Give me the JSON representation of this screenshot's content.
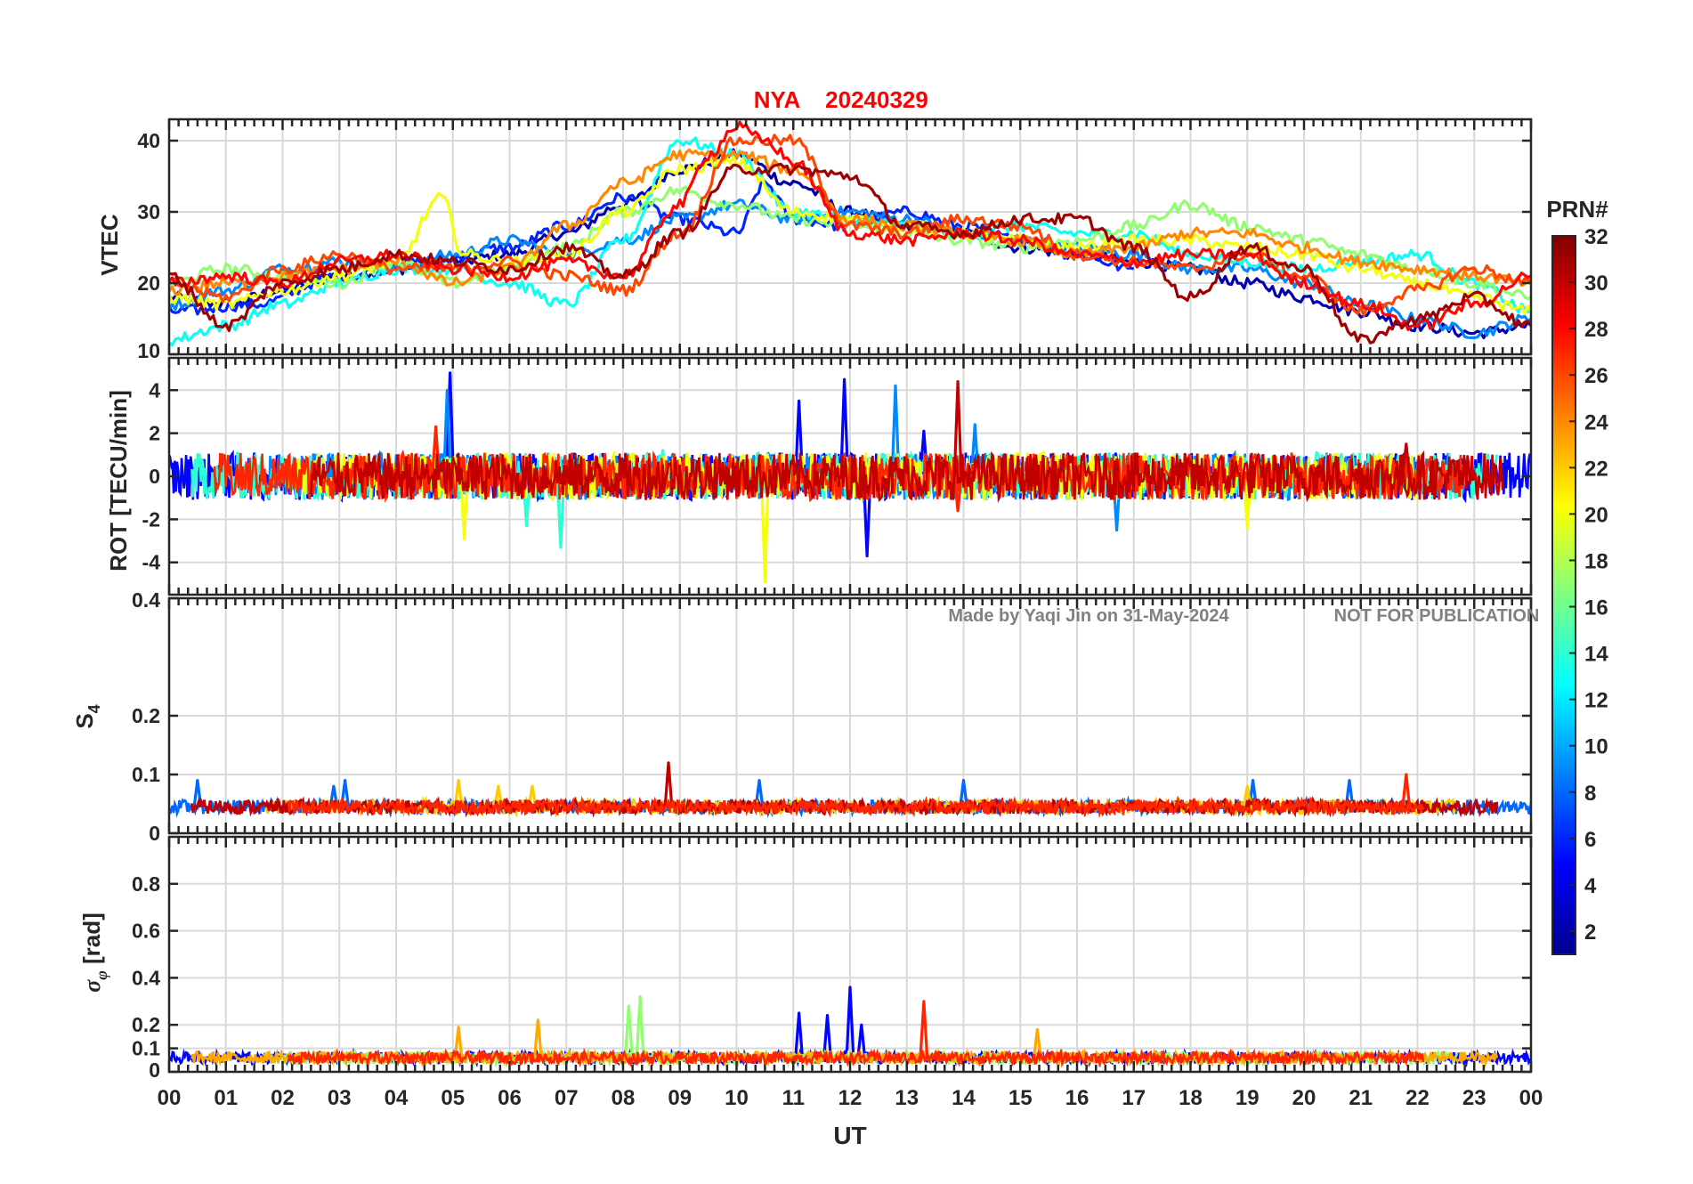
{
  "chart_data": {
    "type": "line",
    "title": {
      "station": "NYA",
      "date": "20240329",
      "color": "#ff0000"
    },
    "watermark": {
      "author": "Made by Yaqi Jin on 31-May-2024",
      "notice": "NOT FOR PUBLICATION",
      "color": "#808080"
    },
    "xlabel": "UT",
    "xlim": [
      0,
      24
    ],
    "x_tick_labels": [
      "00",
      "01",
      "02",
      "03",
      "04",
      "05",
      "06",
      "07",
      "08",
      "09",
      "10",
      "11",
      "12",
      "13",
      "14",
      "15",
      "16",
      "17",
      "18",
      "19",
      "20",
      "21",
      "22",
      "23",
      "00"
    ],
    "colorbar": {
      "title": "PRN#",
      "range": [
        1,
        32
      ],
      "tick_values": [
        2,
        4,
        6,
        8,
        10,
        12,
        14,
        16,
        18,
        20,
        22,
        24,
        26,
        28,
        30,
        32
      ],
      "tick_labels": [
        "2",
        "4",
        "6",
        "8",
        "10",
        "12",
        "14",
        "16",
        "18",
        "20",
        "22",
        "24",
        "26",
        "28",
        "30",
        "32"
      ],
      "colormap": "jet",
      "stops": [
        "#00008f",
        "#0000ff",
        "#0080ff",
        "#00ffff",
        "#80ff80",
        "#ffff00",
        "#ff8000",
        "#ff0000",
        "#800000"
      ]
    },
    "panels": [
      {
        "id": "vtec",
        "ylabel": "VTEC",
        "ylim": [
          10,
          43
        ],
        "y_ticks": [
          10,
          20,
          30,
          40
        ],
        "y_tick_labels": [
          "10",
          "20",
          "30",
          "40"
        ],
        "series": [
          {
            "prn": 2,
            "x": [
              0,
              1,
              2,
              3,
              4,
              5,
              6,
              7,
              8,
              9,
              10,
              11,
              12,
              13,
              14,
              15,
              16,
              17,
              18,
              19,
              20,
              21,
              22,
              23,
              24
            ],
            "y": [
              18,
              17,
              19,
              21,
              22,
              23,
              24,
              27,
              31,
              36,
              38,
              34,
              30,
              28,
              27,
              25,
              24,
              23,
              22,
              20,
              18,
              16,
              14,
              13,
              14
            ]
          },
          {
            "prn": 6,
            "x": [
              0,
              1.5,
              3,
              4.5,
              6,
              7,
              8,
              9,
              10,
              10.5,
              11,
              12,
              13,
              14,
              15,
              16,
              17
            ],
            "y": [
              16,
              17,
              21,
              23,
              25,
              28,
              32,
              29,
              27,
              34,
              29,
              28,
              30,
              28,
              26,
              24,
              22
            ]
          },
          {
            "prn": 9,
            "x": [
              0,
              1,
              2,
              3,
              4,
              5,
              6,
              7,
              8,
              9,
              10,
              11,
              12,
              13,
              14,
              15,
              16,
              17,
              18,
              19,
              20,
              21,
              22,
              23,
              24
            ],
            "y": [
              17,
              19,
              22,
              23,
              22,
              24,
              26,
              24,
              26,
              29,
              31,
              29,
              30,
              29,
              27,
              26,
              25,
              24,
              22,
              22,
              20,
              17,
              15,
              13,
              15
            ]
          },
          {
            "prn": 13,
            "x": [
              0,
              1,
              2,
              3,
              4,
              5,
              6,
              7,
              8,
              9,
              10,
              11,
              12,
              13,
              14,
              15,
              16,
              17,
              18,
              19,
              20,
              21,
              22,
              23,
              24
            ],
            "y": [
              12,
              14,
              17,
              20,
              22,
              22,
              20,
              17,
              26,
              40,
              38,
              30,
              29,
              28,
              27,
              28,
              27,
              27,
              24,
              23,
              22,
              23,
              24,
              20,
              16
            ]
          },
          {
            "prn": 17,
            "x": [
              0,
              1,
              2,
              3,
              4,
              5,
              6,
              7,
              8,
              9,
              10,
              11,
              12,
              13,
              14,
              15,
              16,
              17,
              18,
              19,
              20,
              21,
              22,
              23,
              24
            ],
            "y": [
              20,
              22,
              21,
              20,
              23,
              20,
              22,
              25,
              30,
              33,
              31,
              29,
              28,
              27,
              26,
              25,
              26,
              28,
              31,
              28,
              26,
              24,
              22,
              20,
              18
            ]
          },
          {
            "prn": 20,
            "x": [
              0,
              1,
              2,
              3,
              4,
              4.8,
              5.2,
              6,
              7,
              8,
              9,
              10,
              11,
              12,
              13,
              14,
              15,
              16,
              17,
              18,
              19,
              20,
              21,
              22,
              23,
              24
            ],
            "y": [
              18,
              17,
              19,
              21,
              23,
              32,
              24,
              23,
              24,
              30,
              36,
              37,
              30,
              29,
              28,
              27,
              26,
              25,
              26,
              26,
              25,
              24,
              22,
              20,
              18,
              16
            ]
          },
          {
            "prn": 24,
            "x": [
              0,
              1,
              2,
              3,
              4,
              5,
              6,
              7,
              8,
              9,
              10,
              11,
              12,
              13,
              14,
              15,
              16,
              17,
              18,
              19,
              20,
              21,
              22,
              23,
              24
            ],
            "y": [
              19,
              20,
              21,
              22,
              23,
              20,
              22,
              28,
              34,
              38,
              38,
              36,
              29,
              28,
              27,
              26,
              24,
              25,
              27,
              27,
              25,
              23,
              22,
              21,
              20
            ]
          },
          {
            "prn": 26,
            "x": [
              0,
              1,
              2,
              3,
              4,
              5,
              6,
              7,
              8,
              9,
              10,
              11,
              12,
              13,
              14,
              15,
              16,
              17,
              18,
              19,
              20,
              21,
              22,
              23,
              24
            ],
            "y": [
              20,
              18,
              22,
              24,
              22,
              22,
              23,
              21,
              19,
              27,
              40,
              40,
              28,
              27,
              29,
              28,
              24,
              23,
              22,
              24,
              21,
              16,
              19,
              22,
              20
            ]
          },
          {
            "prn": 28,
            "x": [
              0,
              1,
              2,
              3,
              4,
              5,
              6,
              7,
              8,
              9,
              9.5,
              10,
              10.5,
              11,
              12,
              13,
              14,
              15,
              16,
              17,
              18,
              19,
              20,
              21,
              22,
              23,
              24
            ],
            "y": [
              20,
              21,
              20,
              23,
              24,
              22,
              21,
              23,
              21,
              31,
              38,
              42,
              40,
              37,
              27,
              26,
              27,
              26,
              24,
              23,
              24,
              24,
              20,
              17,
              14,
              17,
              21
            ]
          },
          {
            "prn": 31,
            "x": [
              0,
              1,
              2,
              3,
              4,
              5,
              6,
              7,
              8,
              9,
              10,
              11,
              12,
              13,
              14,
              15,
              16,
              17,
              18,
              19,
              20,
              21,
              22,
              23,
              24
            ],
            "y": [
              21,
              14,
              20,
              22,
              24,
              23,
              22,
              25,
              21,
              27,
              36,
              36,
              35,
              28,
              27,
              29,
              29,
              25,
              18,
              25,
              22,
              12,
              15,
              18,
              14
            ]
          }
        ]
      },
      {
        "id": "rot",
        "ylabel": "ROT [TECU/min]",
        "ylim": [
          -5.5,
          5.5
        ],
        "y_ticks": [
          -4,
          -2,
          0,
          2,
          4
        ],
        "y_tick_labels": [
          "-4",
          "-2",
          "0",
          "2",
          "4"
        ],
        "series": [
          {
            "prn": 5,
            "x": [
              4.95,
              11.1,
              11.9,
              12.3,
              13.3
            ],
            "y": [
              4.8,
              3.5,
              4.5,
              -3.7,
              2.1
            ]
          },
          {
            "prn": 9,
            "x": [
              4.9,
              12.8,
              14.2,
              16.7
            ],
            "y": [
              4.0,
              4.2,
              2.4,
              -2.5
            ]
          },
          {
            "prn": 14,
            "x": [
              6.3,
              6.9,
              8.7
            ],
            "y": [
              -2.3,
              -3.3,
              1.2
            ]
          },
          {
            "prn": 20,
            "x": [
              5.2,
              10.5,
              19.0
            ],
            "y": [
              -2.9,
              -4.9,
              -2.4
            ]
          },
          {
            "prn": 27,
            "x": [
              4.7,
              13.9
            ],
            "y": [
              2.3,
              -1.6
            ]
          },
          {
            "prn": 30,
            "x": [
              13.9,
              21.8
            ],
            "y": [
              4.4,
              1.5
            ]
          }
        ]
      },
      {
        "id": "s4",
        "ylabel": "S4",
        "ylim": [
          0,
          0.4
        ],
        "y_ticks": [
          0,
          0.1,
          0.2,
          0.4
        ],
        "y_tick_labels": [
          "0",
          "0.1",
          "0.2",
          "0.4"
        ],
        "series": [
          {
            "prn": 8,
            "x": [
              0.5,
              2.9,
              3.1,
              10.4,
              14.0,
              19.1,
              20.8
            ],
            "y": [
              0.09,
              0.08,
              0.09,
              0.09,
              0.09,
              0.09,
              0.09
            ]
          },
          {
            "prn": 22,
            "x": [
              5.1,
              5.8,
              6.4,
              19.0
            ],
            "y": [
              0.09,
              0.08,
              0.08,
              0.08
            ]
          },
          {
            "prn": 30,
            "x": [
              8.8
            ],
            "y": [
              0.12
            ]
          },
          {
            "prn": 27,
            "x": [
              21.8
            ],
            "y": [
              0.1
            ]
          }
        ]
      },
      {
        "id": "sigma_phi",
        "ylabel": "σφ [rad]",
        "ylim": [
          0,
          1.0
        ],
        "y_ticks": [
          0,
          0.1,
          0.2,
          0.4,
          0.6,
          0.8
        ],
        "y_tick_labels": [
          "0",
          "0.1",
          "0.2",
          "0.4",
          "0.6",
          "0.8"
        ],
        "series": [
          {
            "prn": 5,
            "x": [
              11.1,
              11.6,
              12.0,
              12.2
            ],
            "y": [
              0.25,
              0.24,
              0.36,
              0.2
            ]
          },
          {
            "prn": 17,
            "x": [
              8.1,
              8.3
            ],
            "y": [
              0.28,
              0.32
            ]
          },
          {
            "prn": 23,
            "x": [
              5.1,
              6.5,
              15.3
            ],
            "y": [
              0.19,
              0.22,
              0.18
            ]
          },
          {
            "prn": 27,
            "x": [
              13.3
            ],
            "y": [
              0.3
            ]
          }
        ]
      }
    ]
  }
}
